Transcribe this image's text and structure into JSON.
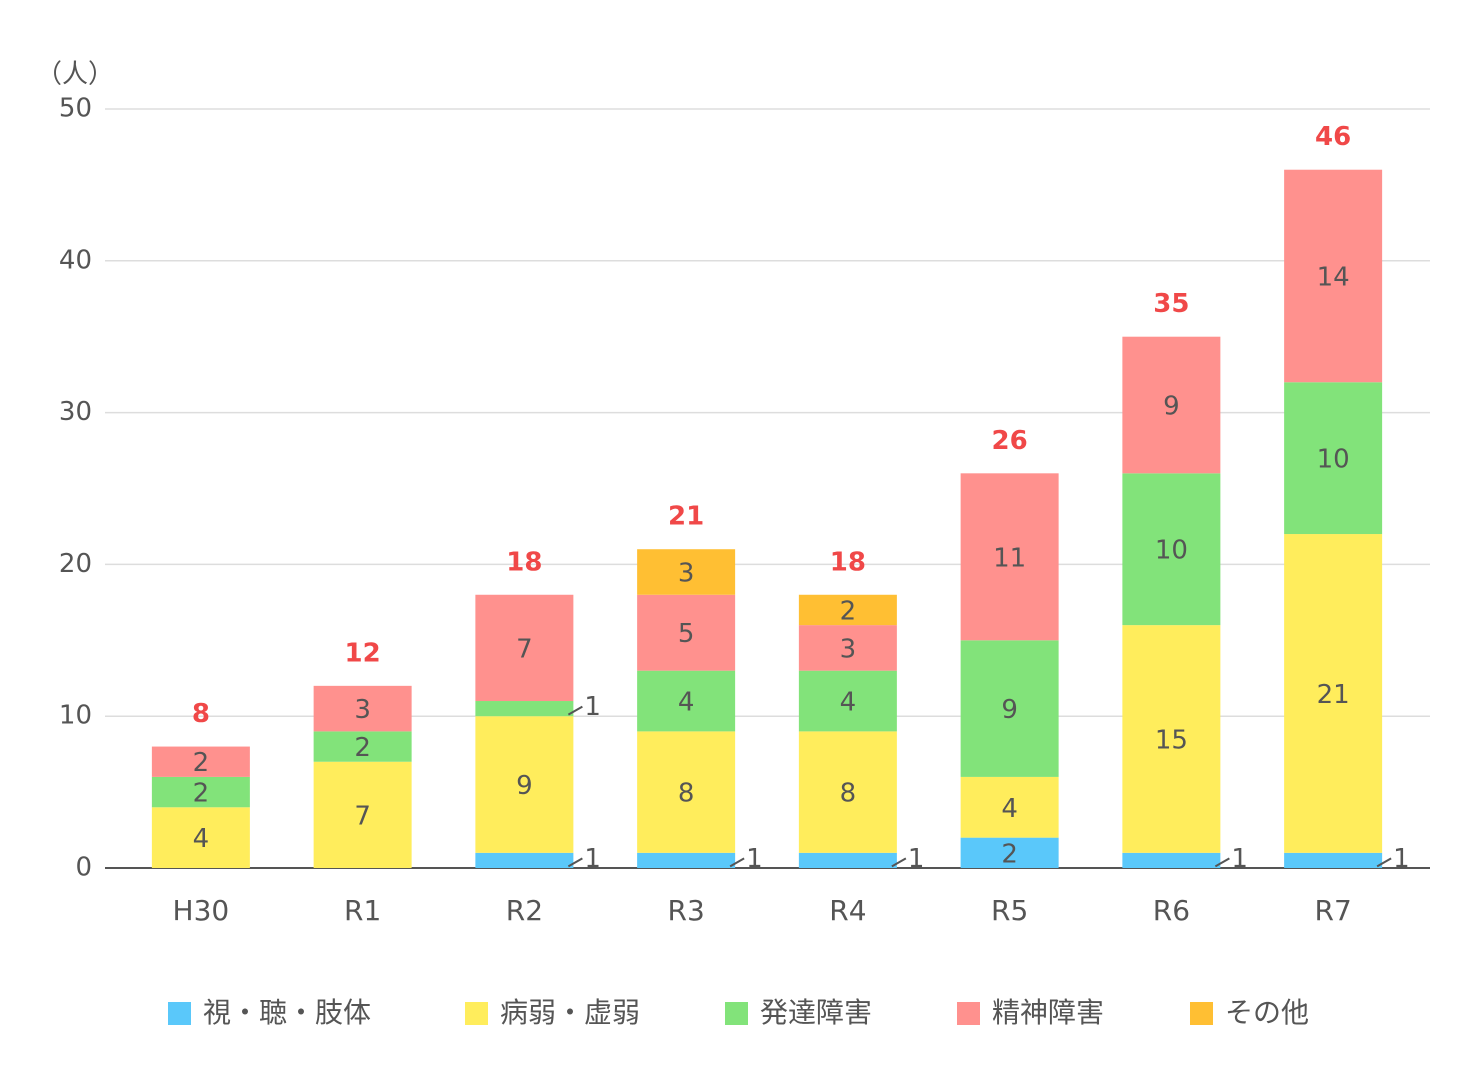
{
  "chart_data": {
    "type": "stacked-bar",
    "y_unit": "（人）",
    "categories": [
      "H30",
      "R1",
      "R2",
      "R3",
      "R4",
      "R5",
      "R6",
      "R7"
    ],
    "series": [
      {
        "name": "視・聴・肢体",
        "color": "#5ac8fa",
        "values": [
          null,
          null,
          1,
          1,
          1,
          2,
          1,
          1
        ]
      },
      {
        "name": "病弱・虚弱",
        "color": "#ffed5c",
        "values": [
          4,
          7,
          9,
          8,
          8,
          4,
          15,
          21
        ]
      },
      {
        "name": "発達障害",
        "color": "#82e37a",
        "values": [
          2,
          2,
          1,
          4,
          4,
          9,
          10,
          10
        ]
      },
      {
        "name": "精神障害",
        "color": "#ff918e",
        "values": [
          2,
          3,
          7,
          5,
          3,
          11,
          9,
          14
        ]
      },
      {
        "name": "その他",
        "color": "#ffbf33",
        "values": [
          null,
          null,
          null,
          3,
          2,
          null,
          null,
          null
        ]
      }
    ],
    "totals": [
      8,
      12,
      18,
      21,
      18,
      26,
      35,
      46
    ],
    "ylim": [
      0,
      50
    ],
    "yticks": [
      0,
      10,
      20,
      30,
      40,
      50
    ],
    "grid": true
  }
}
